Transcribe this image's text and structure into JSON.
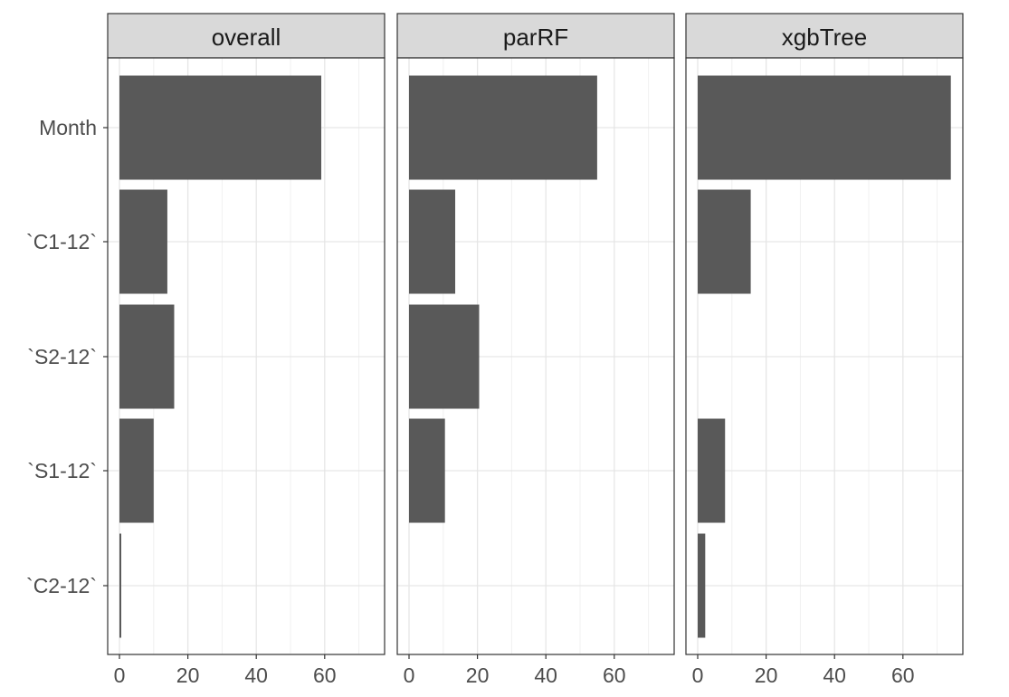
{
  "chart_data": {
    "type": "bar",
    "orientation": "horizontal",
    "faceted": true,
    "categories": [
      "Month",
      "`C1-12`",
      "`S2-12`",
      "`S1-12`",
      "`C2-12`"
    ],
    "xlim": [
      0,
      75
    ],
    "x_ticks": [
      0,
      20,
      40,
      60
    ],
    "grid": true,
    "bar_color": "#595959",
    "panels": [
      {
        "title": "overall",
        "values": [
          59,
          14,
          16,
          10,
          0.5
        ]
      },
      {
        "title": "parRF",
        "values": [
          55,
          13.5,
          20.5,
          10.5,
          0
        ]
      },
      {
        "title": "xgbTree",
        "values": [
          74,
          15.5,
          0,
          8,
          2.2
        ]
      }
    ]
  }
}
